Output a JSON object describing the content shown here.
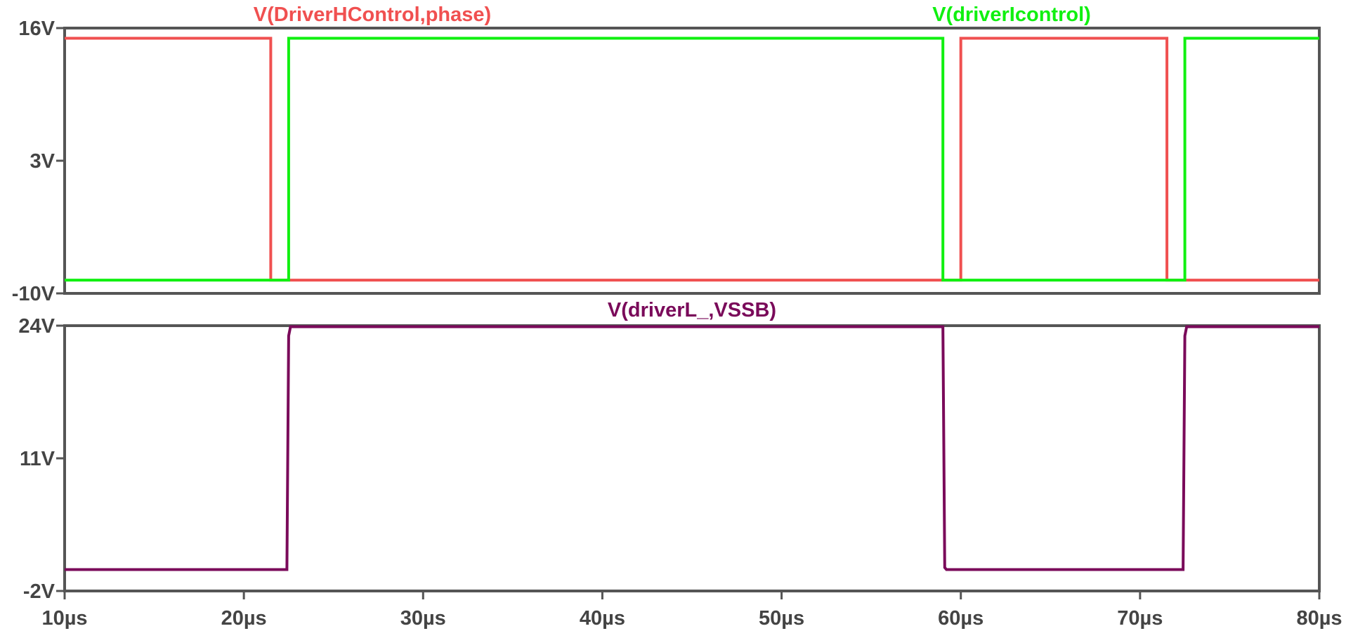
{
  "chart_data": [
    {
      "type": "line",
      "title": "",
      "xlabel": "",
      "ylabel": "",
      "xlim": [
        10,
        80
      ],
      "ylim": [
        -10,
        16
      ],
      "yticks": [
        {
          "value": 16,
          "label": "16V"
        },
        {
          "value": 3,
          "label": "3V"
        },
        {
          "value": -10,
          "label": "-10V"
        }
      ],
      "grid": false,
      "legend": "top",
      "series": [
        {
          "name": "V(DriverHControl,phase)",
          "color": "#f05050",
          "x": [
            10,
            21.5,
            21.5,
            60.0,
            60.0,
            71.5,
            71.5,
            80
          ],
          "y": [
            15,
            15,
            -8.7,
            -8.7,
            15,
            15,
            -8.7,
            -8.7
          ]
        },
        {
          "name": "V(driverIcontrol)",
          "color": "#10f010",
          "x": [
            10,
            22.5,
            22.5,
            59.0,
            59.0,
            72.5,
            72.5,
            80
          ],
          "y": [
            -8.7,
            -8.7,
            15,
            15,
            -8.7,
            -8.7,
            15,
            15
          ]
        }
      ]
    },
    {
      "type": "line",
      "title": "",
      "xlabel": "",
      "ylabel": "",
      "xlim": [
        10,
        80
      ],
      "ylim": [
        -2,
        24
      ],
      "yticks": [
        {
          "value": 24,
          "label": "24V"
        },
        {
          "value": 11,
          "label": "11V"
        },
        {
          "value": -2,
          "label": "-2V"
        }
      ],
      "xticks": [
        {
          "value": 10,
          "label": "10µs"
        },
        {
          "value": 20,
          "label": "20µs"
        },
        {
          "value": 30,
          "label": "30µs"
        },
        {
          "value": 40,
          "label": "40µs"
        },
        {
          "value": 50,
          "label": "50µs"
        },
        {
          "value": 60,
          "label": "60µs"
        },
        {
          "value": 70,
          "label": "70µs"
        },
        {
          "value": 80,
          "label": "80µs"
        }
      ],
      "grid": false,
      "legend": "top",
      "series": [
        {
          "name": "V(driverL_,VSSB)",
          "color": "#7a0a5a",
          "x": [
            10,
            22.4,
            22.5,
            22.6,
            59.0,
            59.1,
            59.2,
            72.4,
            72.5,
            72.6,
            80
          ],
          "y": [
            0.1,
            0.1,
            23.0,
            23.9,
            23.9,
            0.3,
            0.1,
            0.1,
            23.0,
            23.9,
            23.9
          ]
        }
      ]
    }
  ]
}
